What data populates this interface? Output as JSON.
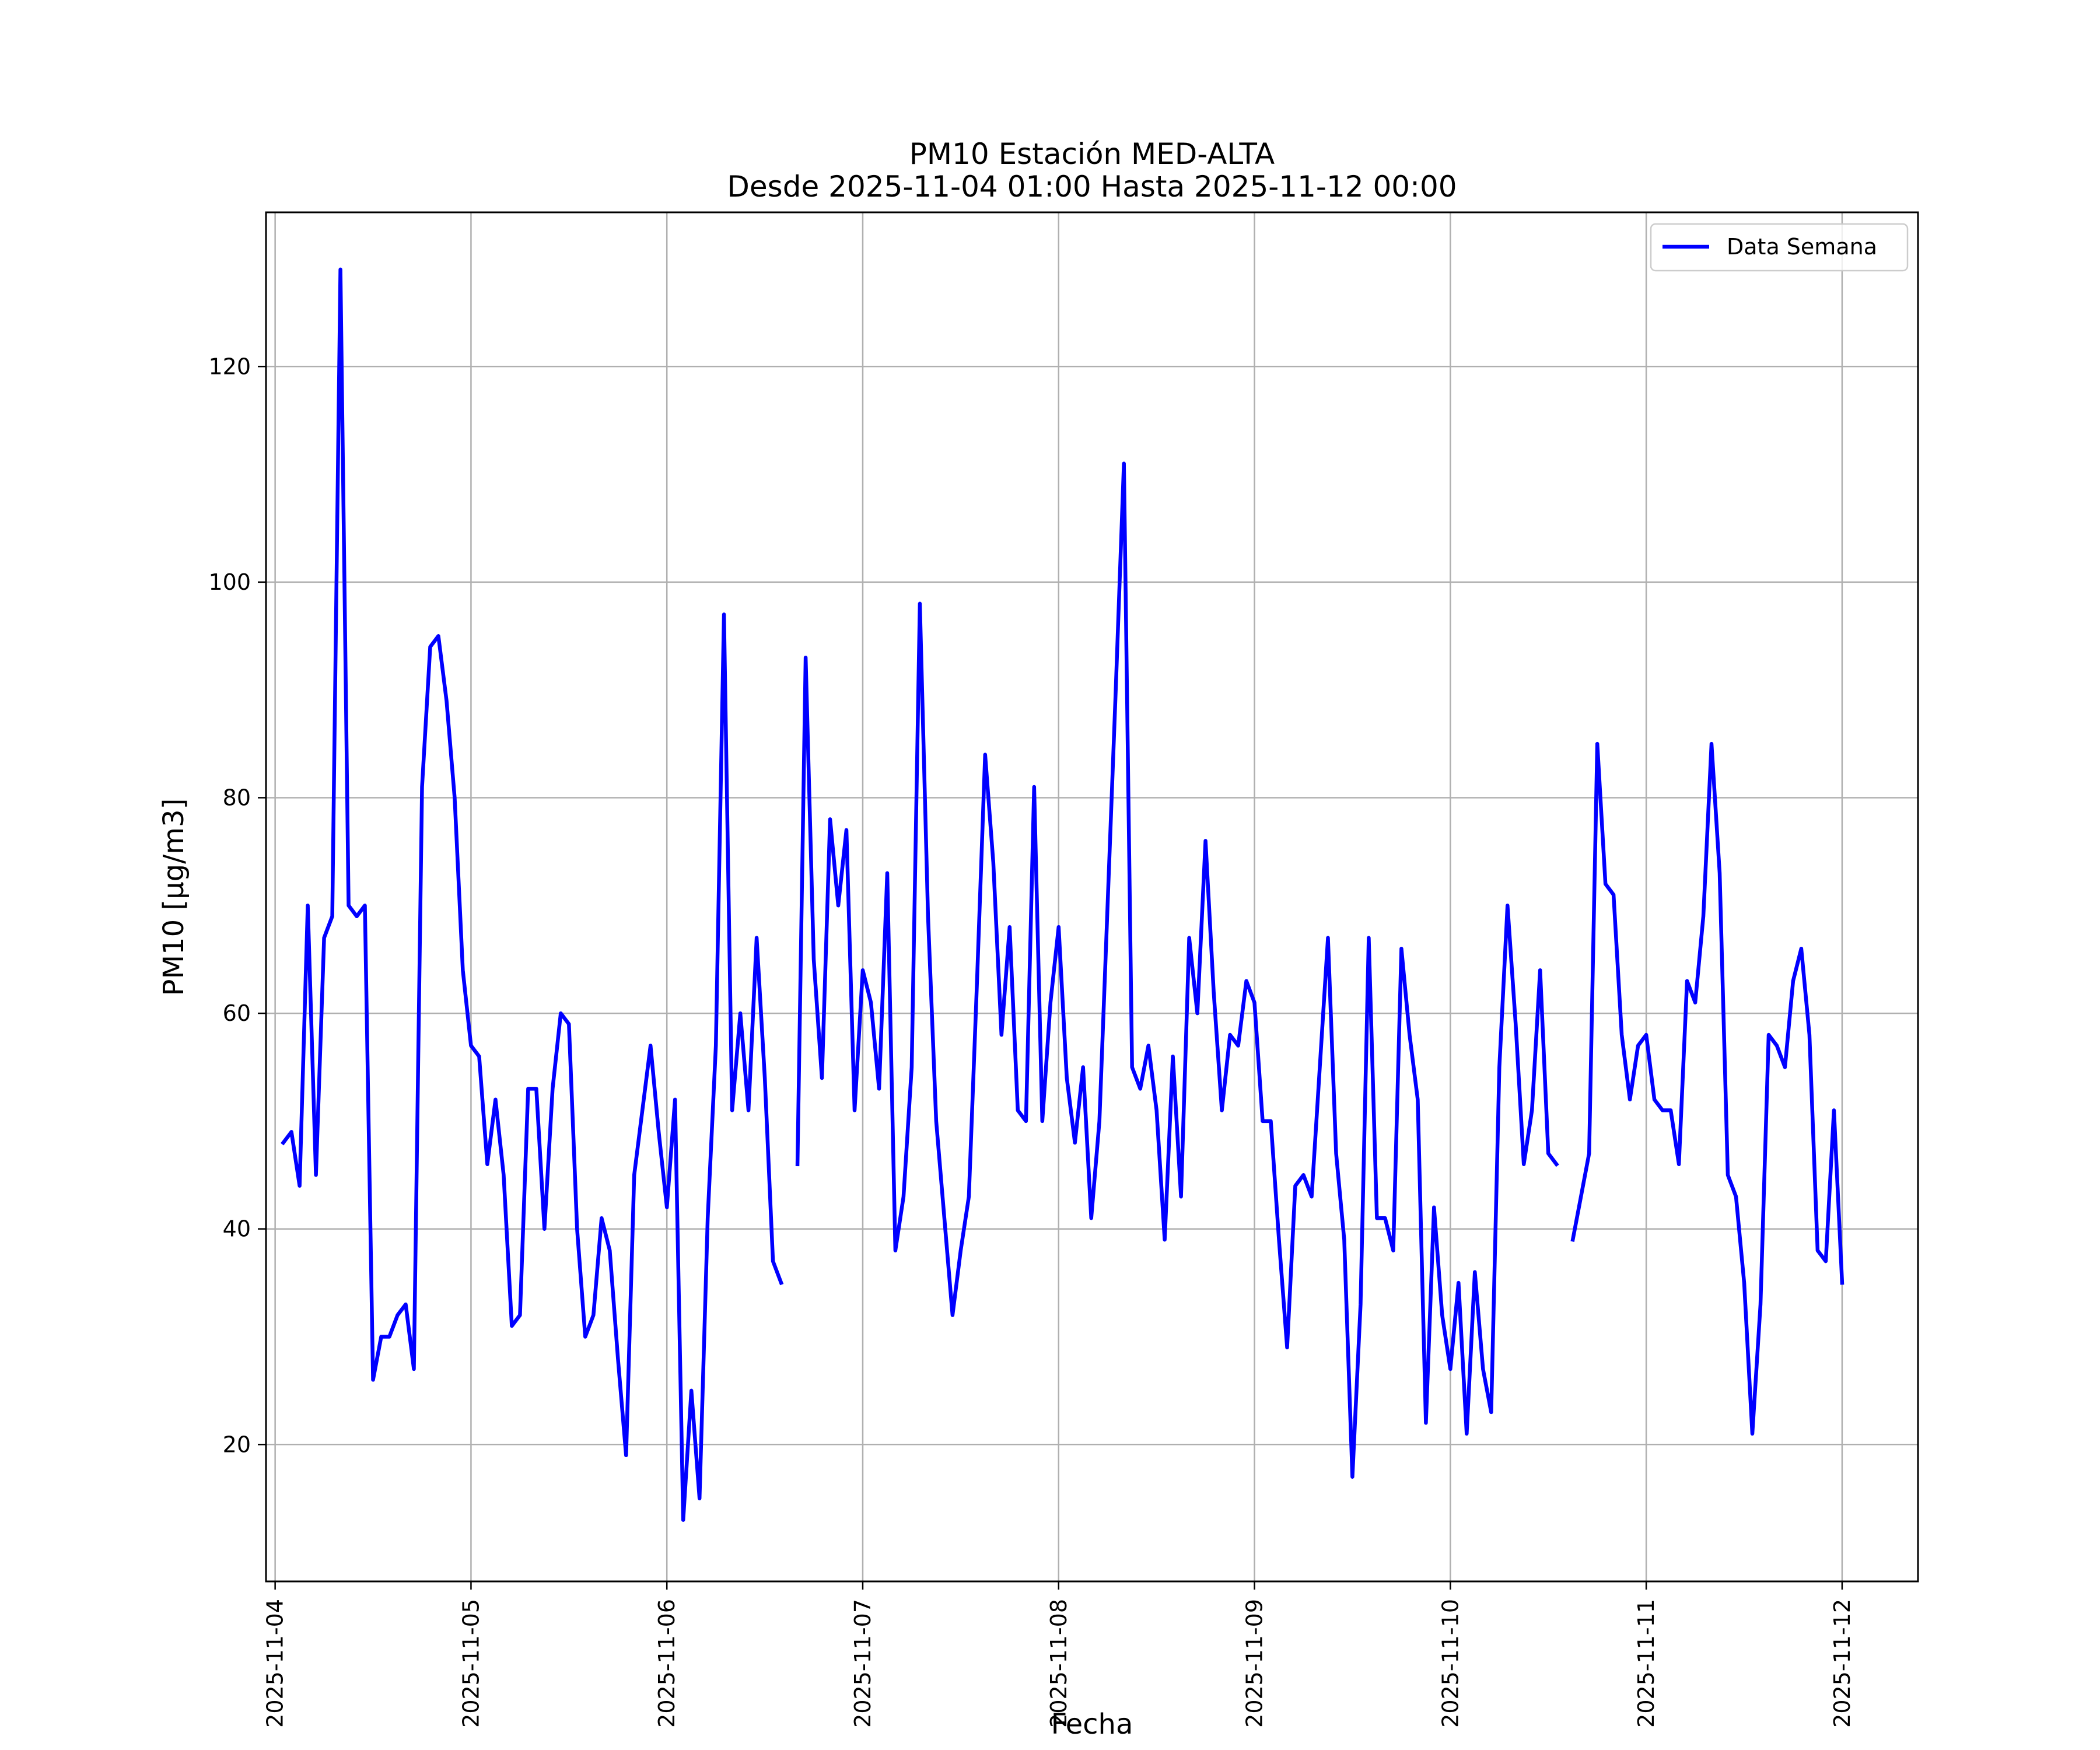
{
  "chart_data": {
    "type": "line",
    "title": "PM10 Estación MED-ALTA",
    "subtitle": "Desde 2025-11-04 01:00 Hasta 2025-11-12 00:00",
    "xlabel": "Fecha",
    "ylabel": "PM10 [μg/m3]",
    "xlim": [
      -0.0466,
      8.3875
    ],
    "ylim": [
      7.3,
      134.3
    ],
    "grid": true,
    "legend_position": "upper-right",
    "x_ticks": [
      {
        "value": 0,
        "label": "2025-11-04"
      },
      {
        "value": 1,
        "label": "2025-11-05"
      },
      {
        "value": 2,
        "label": "2025-11-06"
      },
      {
        "value": 3,
        "label": "2025-11-07"
      },
      {
        "value": 4,
        "label": "2025-11-08"
      },
      {
        "value": 5,
        "label": "2025-11-09"
      },
      {
        "value": 6,
        "label": "2025-11-10"
      },
      {
        "value": 7,
        "label": "2025-11-11"
      },
      {
        "value": 8,
        "label": "2025-11-12"
      }
    ],
    "y_ticks": [
      {
        "value": 20,
        "label": "20"
      },
      {
        "value": 40,
        "label": "40"
      },
      {
        "value": 60,
        "label": "60"
      },
      {
        "value": 80,
        "label": "80"
      },
      {
        "value": 100,
        "label": "100"
      },
      {
        "value": 120,
        "label": "120"
      }
    ],
    "series": [
      {
        "name": "Data Semana",
        "color": "#0000ff",
        "x_units": "days since 2025-11-04 00:00 (hourly step)",
        "segments": [
          {
            "start_hour": 1,
            "values": [
              48,
              49,
              44,
              70,
              45,
              67,
              69,
              129,
              70,
              69,
              70,
              26,
              30,
              30,
              32,
              33,
              27,
              81,
              94,
              95,
              89,
              80,
              64,
              57,
              56,
              46,
              52,
              45,
              31,
              32,
              53,
              53,
              40,
              53,
              60,
              59,
              40,
              30,
              32,
              41,
              38,
              28,
              19,
              45,
              51,
              57,
              49,
              42,
              52,
              13,
              25,
              15,
              41,
              57,
              97,
              51,
              60,
              51,
              67,
              54,
              37,
              35
            ]
          },
          {
            "start_hour": 64,
            "values": [
              46,
              93,
              65,
              54,
              78,
              70,
              77,
              51,
              64,
              61,
              53,
              73,
              38,
              43,
              55,
              98,
              69,
              50,
              41,
              32,
              38,
              43,
              63,
              84,
              74,
              58,
              68,
              51,
              50,
              81,
              50,
              61,
              68,
              54,
              48,
              55,
              41,
              50,
              70,
              90,
              111,
              55,
              53,
              57,
              51,
              39,
              56,
              43,
              67,
              60,
              76,
              62,
              51,
              58,
              57,
              63,
              61,
              50,
              50,
              39,
              29,
              44,
              45,
              43,
              55,
              67,
              47,
              39,
              17,
              33,
              67,
              41,
              41,
              38,
              66,
              58,
              52,
              22,
              42,
              32,
              27,
              35,
              21,
              36,
              27,
              23,
              55,
              70,
              59,
              46,
              51,
              64,
              47,
              46
            ]
          },
          {
            "start_hour": 159,
            "values": [
              39,
              43,
              47,
              85,
              72,
              71,
              58,
              52,
              57,
              58,
              52,
              51,
              51,
              46,
              63,
              61,
              69,
              85,
              73,
              45,
              43,
              35,
              21,
              33,
              58,
              57,
              55,
              63,
              66,
              58,
              38,
              37,
              51,
              35
            ]
          }
        ]
      }
    ]
  }
}
